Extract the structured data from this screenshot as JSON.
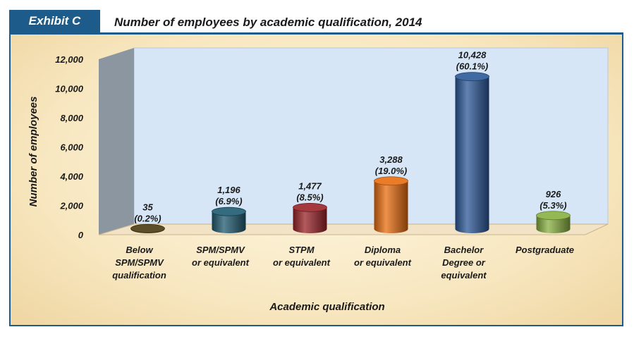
{
  "header": {
    "exhibit": "Exhibit C",
    "title": "Number of employees by academic qualification, 2014"
  },
  "colors": {
    "accent": "#1d5c8a",
    "plot_back": "#d6e6f6",
    "left_wall": "#8c96a0",
    "floor": "#f2e3c6"
  },
  "chart_data": {
    "type": "bar",
    "title": "Number of employees by academic qualification, 2014",
    "xlabel": "Academic qualification",
    "ylabel": "Number of employees",
    "ylim": [
      0,
      12000
    ],
    "yticks": [
      "0",
      "2,000",
      "4,000",
      "6,000",
      "8,000",
      "10,000",
      "12,000"
    ],
    "grid": false,
    "categories": [
      [
        "Below",
        "SPM/SPMV",
        "qualification"
      ],
      [
        "SPM/SPMV",
        "or equivalent"
      ],
      [
        "STPM",
        "or equivalent"
      ],
      [
        "Diploma",
        "or equivalent"
      ],
      [
        "Bachelor",
        "Degree or",
        "equivalent"
      ],
      [
        "Postgraduate"
      ]
    ],
    "values": [
      35,
      1196,
      1477,
      3288,
      10428,
      926
    ],
    "labels": [
      [
        "35",
        "(0.2%)"
      ],
      [
        "1,196",
        "(6.9%)"
      ],
      [
        "1,477",
        "(8.5%)"
      ],
      [
        "3,288",
        "(19.0%)"
      ],
      [
        "10,428",
        "(60.1%)"
      ],
      [
        "926",
        "(5.3%)"
      ]
    ],
    "colors": [
      "#4a3a10",
      "#1f5a70",
      "#9a2328",
      "#e86c0f",
      "#2c5898",
      "#88b040"
    ]
  }
}
